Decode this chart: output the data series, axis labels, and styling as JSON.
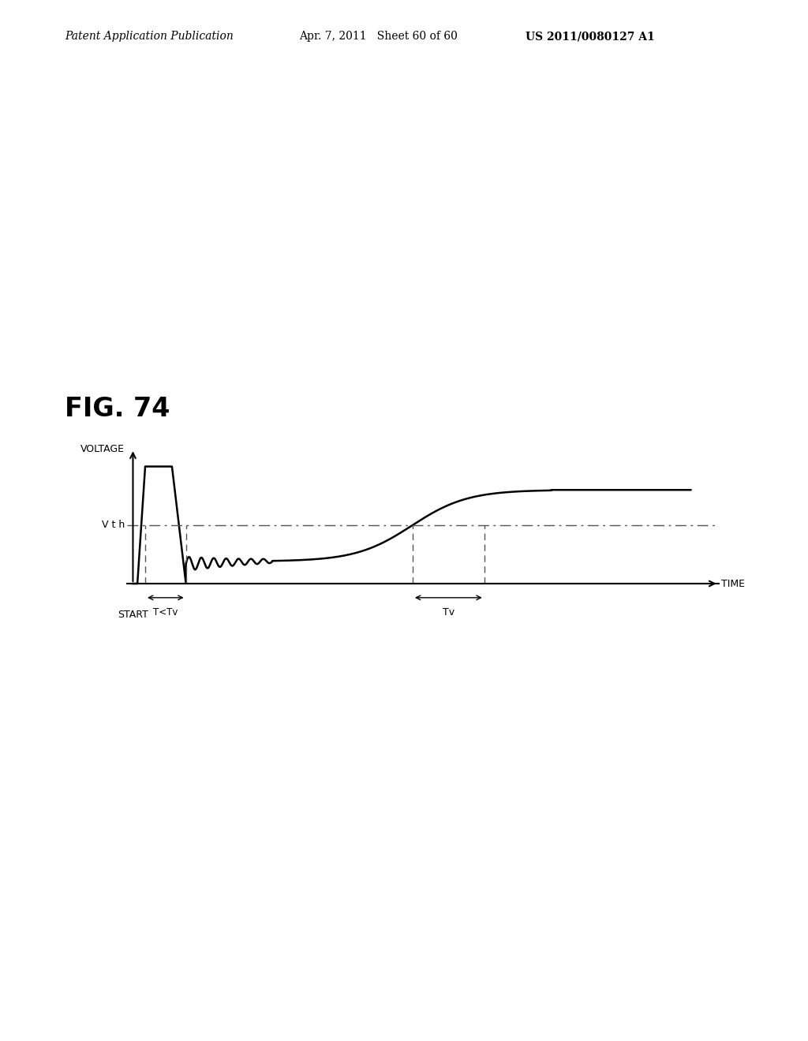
{
  "title": "FIG. 74",
  "header_left": "Patent Application Publication",
  "header_mid": "Apr. 7, 2011   Sheet 60 of 60",
  "header_right": "US 2011/0080127 A1",
  "ylabel": "VOLTAGE",
  "xlabel": "TIME",
  "vth_label": "V t h",
  "start_label": "START",
  "t_ltv_label": "T<Tv",
  "tv_label": "Tv",
  "bg_color": "#ffffff",
  "line_color": "#000000",
  "vth_line_color": "#555555",
  "dashed_color": "#555555"
}
